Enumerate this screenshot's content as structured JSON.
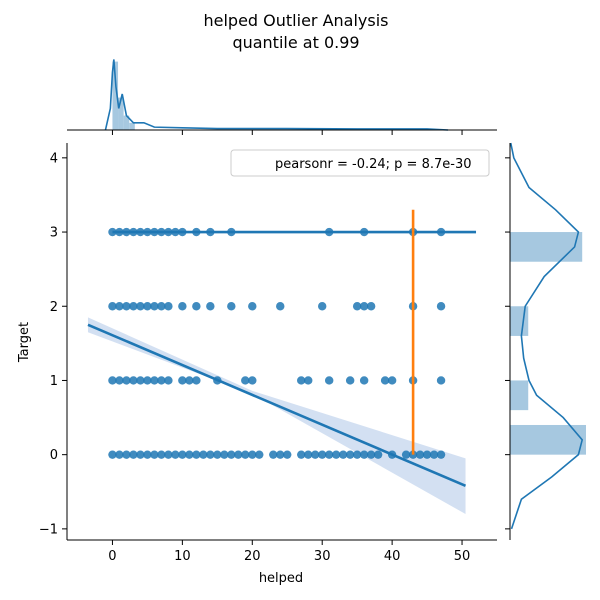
{
  "title": {
    "line1": "helped Outlier Analysis",
    "line2": "quantile at 0.99"
  },
  "chart_data": {
    "type": "scatter",
    "xlabel": "helped",
    "ylabel": "Target",
    "xlim": [
      -6.5,
      55
    ],
    "ylim": [
      -1.15,
      4.2
    ],
    "x_ticks": [
      0,
      10,
      20,
      30,
      40,
      50
    ],
    "y_ticks": [
      -1,
      0,
      1,
      2,
      3,
      4
    ],
    "legend": {
      "text": "pearsonr = -0.24; p = 8.7e-30",
      "placement": "top-right"
    },
    "colors": {
      "points": "#1f77b4",
      "regression": "#1f77b4",
      "confidence_band": "#aec7e8",
      "quantile_line": "#ff7f0e",
      "hist_fill": "#a6c8e0"
    },
    "points": [
      {
        "y": 3,
        "x": [
          0,
          1,
          2,
          3,
          4,
          5,
          6,
          7,
          8,
          9,
          10,
          12,
          14,
          17,
          31,
          36,
          43,
          47
        ]
      },
      {
        "y": 2,
        "x": [
          0,
          1,
          2,
          3,
          4,
          5,
          6,
          7,
          8,
          10,
          12,
          14,
          17,
          20,
          24,
          30,
          35,
          36,
          37,
          43,
          47
        ]
      },
      {
        "y": 1,
        "x": [
          0,
          1,
          2,
          3,
          4,
          5,
          6,
          7,
          8,
          10,
          11,
          12,
          15,
          19,
          20,
          27,
          28,
          31,
          34,
          36,
          39,
          40,
          43,
          47
        ]
      },
      {
        "y": 0,
        "x": [
          0,
          1,
          2,
          3,
          4,
          5,
          6,
          7,
          8,
          9,
          10,
          11,
          12,
          13,
          14,
          15,
          16,
          17,
          18,
          19,
          20,
          21,
          23,
          24,
          25,
          27,
          28,
          29,
          30,
          31,
          32,
          33,
          34,
          35,
          36,
          37,
          38,
          40,
          42,
          43,
          44,
          45,
          46,
          47
        ]
      }
    ],
    "regression_lines": [
      {
        "name": "target-3-fit",
        "x": [
          0,
          52
        ],
        "y": [
          3,
          3
        ]
      },
      {
        "name": "overall-fit",
        "x": [
          -3.5,
          50.5
        ],
        "y": [
          1.75,
          -0.42
        ],
        "band": [
          [
            -3.5,
            1.65,
            1.85
          ],
          [
            20,
            0.82,
            0.86
          ],
          [
            50.5,
            -0.8,
            -0.05
          ]
        ]
      }
    ],
    "quantile_line": {
      "x": 43,
      "y": [
        0,
        3.3
      ]
    },
    "marginal_x": {
      "xlim": [
        -6.5,
        55
      ],
      "hist": [
        {
          "x0": 0,
          "x1": 0.8,
          "h": 0.95
        },
        {
          "x0": 0.8,
          "x1": 1.6,
          "h": 0.45
        },
        {
          "x0": 1.6,
          "x1": 2.4,
          "h": 0.2
        },
        {
          "x0": 2.4,
          "x1": 3.2,
          "h": 0.1
        }
      ],
      "kde": [
        [
          -1,
          0
        ],
        [
          -0.3,
          0.3
        ],
        [
          0,
          0.8
        ],
        [
          0.2,
          0.98
        ],
        [
          0.5,
          0.6
        ],
        [
          0.9,
          0.3
        ],
        [
          1.4,
          0.5
        ],
        [
          2,
          0.2
        ],
        [
          3,
          0.1
        ],
        [
          4.5,
          0.1
        ],
        [
          6,
          0.04
        ],
        [
          10,
          0.03
        ],
        [
          15,
          0.02
        ],
        [
          25,
          0.02
        ],
        [
          35,
          0.015
        ],
        [
          45,
          0.015
        ],
        [
          48,
          0.0
        ]
      ]
    },
    "marginal_y": {
      "ylim": [
        -1.15,
        4.2
      ],
      "bins": [
        {
          "y0": 2.6,
          "y1": 3.0,
          "w": 0.95
        },
        {
          "y0": 1.6,
          "y1": 2.0,
          "w": 0.24
        },
        {
          "y0": 0.6,
          "y1": 1.0,
          "w": 0.24
        },
        {
          "y0": 0.0,
          "y1": 0.4,
          "w": 1.0
        }
      ],
      "kde": [
        [
          -1.0,
          0.02
        ],
        [
          -0.6,
          0.15
        ],
        [
          -0.3,
          0.55
        ],
        [
          0,
          0.9
        ],
        [
          0.2,
          0.95
        ],
        [
          0.5,
          0.7
        ],
        [
          0.8,
          0.35
        ],
        [
          1,
          0.25
        ],
        [
          1.3,
          0.18
        ],
        [
          1.6,
          0.15
        ],
        [
          2,
          0.2
        ],
        [
          2.4,
          0.45
        ],
        [
          2.8,
          0.85
        ],
        [
          3.0,
          0.9
        ],
        [
          3.3,
          0.6
        ],
        [
          3.6,
          0.25
        ],
        [
          4.0,
          0.05
        ],
        [
          4.2,
          0.01
        ]
      ]
    }
  }
}
